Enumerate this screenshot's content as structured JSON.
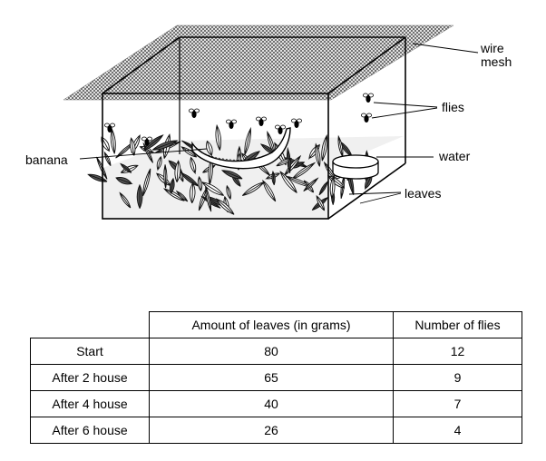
{
  "diagram": {
    "labels": {
      "wire_mesh_line1": "wire",
      "wire_mesh_line2": "mesh",
      "flies": "flies",
      "water": "water",
      "banana": "banana",
      "leaves": "leaves"
    }
  },
  "table": {
    "headers": [
      "",
      "Amount of leaves (in grams)",
      "Number of flies"
    ],
    "rows": [
      {
        "label": "Start",
        "leaves": "80",
        "flies": "12"
      },
      {
        "label": "After 2 house",
        "leaves": "65",
        "flies": "9"
      },
      {
        "label": "After 4 house",
        "leaves": "40",
        "flies": "7"
      },
      {
        "label": "After 6 house",
        "leaves": "26",
        "flies": "4"
      }
    ]
  }
}
